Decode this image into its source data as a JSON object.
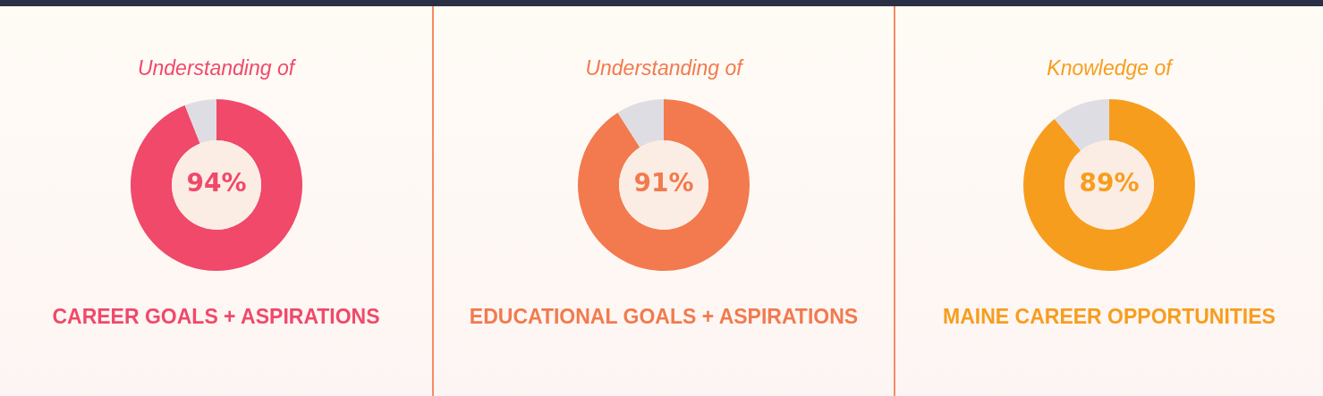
{
  "chart_data": [
    {
      "type": "donut",
      "title": "Understanding of",
      "xlabel": "CAREER GOALS + ASPIRATIONS",
      "categories": [
        null,
        null
      ],
      "values": [
        94,
        6
      ],
      "colors": [
        "#f0496a",
        "#dedde3"
      ],
      "value_labels": [
        "94%",
        null
      ]
    },
    {
      "type": "donut",
      "title": "Understanding of",
      "xlabel": "EDUCATIONAL GOALS + ASPIRATIONS",
      "categories": [
        null,
        null
      ],
      "values": [
        91,
        9
      ],
      "colors": [
        "#f27a4e",
        "#dedde3"
      ],
      "value_labels": [
        "91%",
        null
      ]
    },
    {
      "type": "donut",
      "title": "Knowledge of",
      "xlabel": "MAINE CAREER OPPORTUNITIES",
      "categories": [
        null,
        null
      ],
      "values": [
        89,
        11
      ],
      "colors": [
        "#f79d1e",
        "#dedde3"
      ],
      "value_labels": [
        "89%",
        null
      ]
    }
  ]
}
